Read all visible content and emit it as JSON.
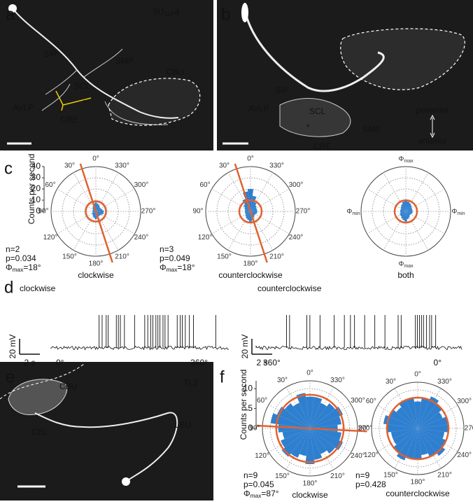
{
  "panels": {
    "a": {
      "label": "a",
      "title": {
        "main": "TU",
        "sub": "SLP",
        "suffix": "4"
      },
      "regions": [
        "SIP",
        "SMP",
        "SCL",
        "AVLP",
        "CRE",
        "CBU"
      ],
      "asterisk": "*"
    },
    "b": {
      "label": "b",
      "regions": [
        "SIP",
        "AVLP",
        "SCL",
        "CRE",
        "SMP"
      ],
      "asterisk": "*",
      "orientation": [
        "posterior",
        "anterior"
      ]
    },
    "c": {
      "label": "c",
      "axis_label": "Counts per second",
      "plots": [
        {
          "type": "polar-bar",
          "rlim": [
            0,
            40
          ],
          "rticks": [
            0,
            10,
            20,
            30,
            40
          ],
          "show_raxis": true,
          "angle_labels": [
            "0°",
            "30°",
            "60°",
            "90°",
            "120°",
            "150°",
            "180°",
            "210°",
            "240°",
            "270°",
            "300°",
            "330°"
          ],
          "values": [
            8,
            7,
            5,
            4,
            3,
            3,
            3,
            3,
            4,
            4,
            5,
            6,
            7,
            6,
            5,
            5,
            6,
            7,
            7,
            6,
            5,
            5,
            6,
            7
          ],
          "color": "#2f7fcf",
          "mean_radius": 9,
          "mean_color": "#e0622f",
          "phi_max": 18,
          "stats": [
            "n=2",
            "p=0.034"
          ],
          "phimax_label": {
            "symbol": "Φ",
            "sub": "max",
            "text": "=18°"
          },
          "title": "clockwise"
        },
        {
          "type": "polar-bar",
          "rlim": [
            0,
            40
          ],
          "rticks": [
            0,
            10,
            20,
            30,
            40
          ],
          "show_raxis": false,
          "angle_labels": [
            "0°",
            "30°",
            "60°",
            "90°",
            "120°",
            "150°",
            "180°",
            "210°",
            "240°",
            "270°",
            "300°",
            "330°"
          ],
          "values": [
            20,
            18,
            12,
            8,
            6,
            5,
            5,
            5,
            5,
            6,
            7,
            8,
            10,
            8,
            6,
            5,
            5,
            6,
            6,
            6,
            6,
            7,
            9,
            14
          ],
          "color": "#2f7fcf",
          "mean_radius": 10,
          "mean_color": "#e0622f",
          "phi_max": 18,
          "stats": [
            "n=3",
            "p=0.049"
          ],
          "phimax_label": {
            "symbol": "Φ",
            "sub": "max",
            "text": "=18°"
          },
          "title": "counterclockwise"
        },
        {
          "type": "polar-bar",
          "rlim": [
            0,
            40
          ],
          "rticks": [
            0,
            10,
            20,
            30,
            40
          ],
          "show_raxis": false,
          "angle_labels": [
            {
              "symbol": "Φ",
              "sub": "max"
            },
            {
              "symbol": "Φ",
              "sub": "min"
            },
            {
              "symbol": "Φ",
              "sub": "max"
            },
            {
              "symbol": "Φ",
              "sub": "min"
            }
          ],
          "values": [
            10,
            9,
            7,
            6,
            5,
            5,
            5,
            5,
            6,
            6,
            7,
            8,
            9,
            7,
            6,
            5,
            5,
            6,
            6,
            6,
            6,
            7,
            8,
            9
          ],
          "color": "#2f7fcf",
          "mean_radius": 10,
          "mean_color": "#e0622f",
          "title": "both"
        }
      ]
    },
    "d": {
      "label": "d",
      "traces": [
        {
          "title": "clockwise",
          "voltage_bar": {
            "value": 20,
            "label": "20 mV"
          },
          "time_bar": {
            "value": 2,
            "label": "2 s"
          },
          "start_label": "0°",
          "end_label": "360°",
          "spike_times": [
            4.8,
            5.1,
            5.5,
            5.7,
            6.5,
            6.7,
            6.9,
            7.3,
            8.3,
            9.3,
            9.6,
            9.9,
            10.1,
            10.4,
            10.6,
            10.8,
            11.1,
            11.3,
            11.6,
            12.5,
            12.8,
            13.0,
            13.3,
            13.7,
            14.1,
            16.3
          ]
        },
        {
          "title": "counterclockwise",
          "voltage_bar": {
            "value": 20,
            "label": "20 mV"
          },
          "time_bar": {
            "value": 2,
            "label": "2 s"
          },
          "start_label": "360°",
          "end_label": "0°",
          "spike_times": [
            3.0,
            3.3,
            5.0,
            5.3,
            6.3,
            7.7,
            8.7,
            9.3,
            9.7,
            10.7,
            11.7,
            12.7,
            14.0,
            14.3,
            15.7,
            15.9,
            16.1,
            16.3,
            16.5,
            16.8,
            17.1,
            17.3,
            17.7
          ]
        }
      ]
    },
    "e": {
      "label": "e",
      "regions": [
        "CBU",
        "TL2",
        "CBL",
        "LBU"
      ]
    },
    "f": {
      "label": "f",
      "axis_label": "Counts per second",
      "plots": [
        {
          "type": "polar-bar",
          "rlim": [
            0,
            12
          ],
          "rticks": [
            0,
            5,
            10
          ],
          "show_raxis": true,
          "angle_labels": [
            "0°",
            "30°",
            "60°",
            "90°",
            "120°",
            "150°",
            "180°",
            "210°",
            "240°",
            "270°",
            "300°",
            "330°"
          ],
          "values": [
            8,
            9,
            7,
            8,
            9,
            10,
            8,
            7,
            8,
            9,
            8,
            7,
            9,
            8,
            7,
            8,
            9,
            8,
            7,
            8,
            9,
            8,
            7,
            8
          ],
          "color": "#2f7fcf",
          "mean_radius": 8.5,
          "mean_color": "#e0622f",
          "phi_max": 87,
          "stats": [
            "n=9",
            "p=0.045"
          ],
          "phimax_label": {
            "symbol": "Φ",
            "sub": "max",
            "text": "=87°"
          },
          "title": "clockwise"
        },
        {
          "type": "polar-bar",
          "rlim": [
            0,
            12
          ],
          "rticks": [
            0,
            5,
            10
          ],
          "show_raxis": false,
          "angle_labels": [
            "0°",
            "30°",
            "60°",
            "90°",
            "120°",
            "150°",
            "180°",
            "210°",
            "240°",
            "270°",
            "300°",
            "330°"
          ],
          "values": [
            7,
            8,
            8,
            7,
            8,
            9,
            8,
            7,
            7,
            8,
            9,
            8,
            8,
            7,
            8,
            9,
            8,
            7,
            8,
            8,
            7,
            8,
            9,
            8
          ],
          "color": "#2f7fcf",
          "mean_radius": 8,
          "mean_color": "#e0622f",
          "stats": [
            "n=9",
            "p=0.428"
          ],
          "title": "counterclockwise"
        }
      ]
    }
  }
}
